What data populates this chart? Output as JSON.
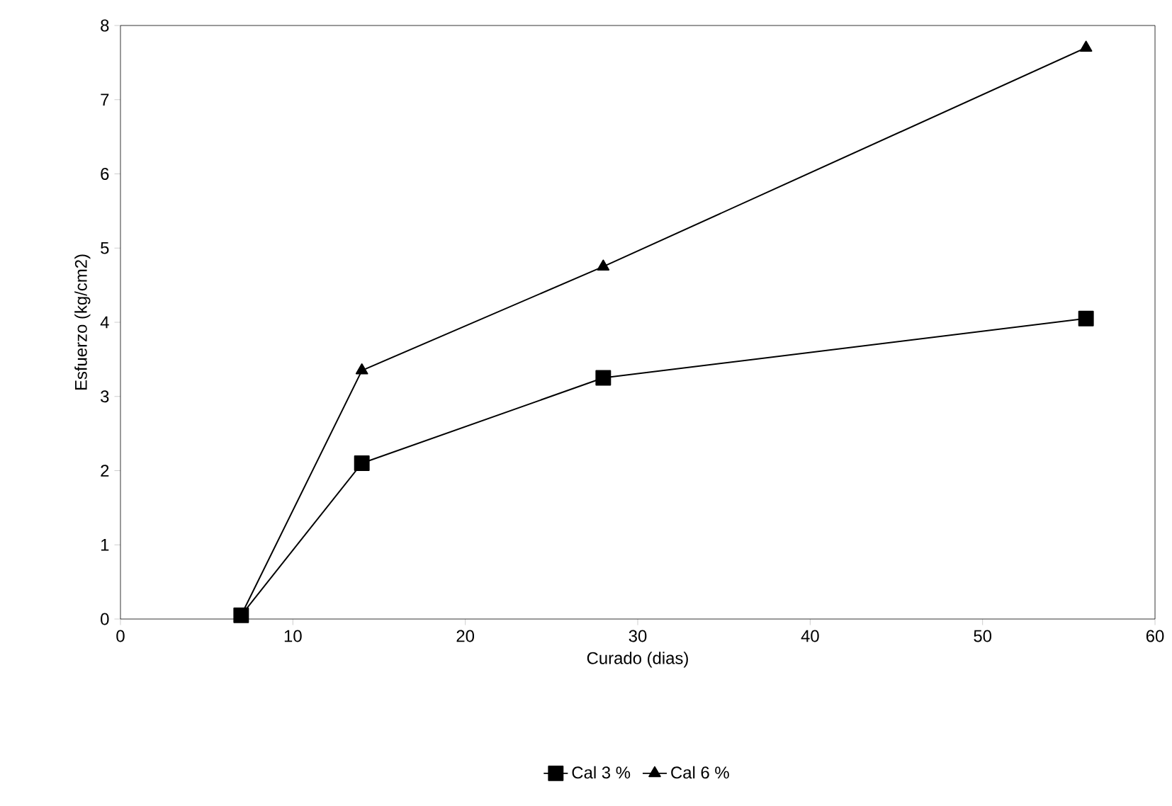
{
  "chart_data": {
    "type": "line",
    "xlabel": "Curado (dias)",
    "ylabel": "Esfuerzo (kg/cm2)",
    "xlim": [
      0,
      60
    ],
    "xticks": [
      0,
      10,
      20,
      30,
      40,
      50,
      60
    ],
    "ylim": [
      0,
      8
    ],
    "yticks": [
      0,
      1,
      2,
      3,
      4,
      5,
      6,
      7,
      8
    ],
    "x": [
      7,
      14,
      28,
      56
    ],
    "series": [
      {
        "name": "Cal 3 %",
        "color": "#000000",
        "marker": "square",
        "values": [
          0.05,
          2.1,
          3.25,
          4.05
        ]
      },
      {
        "name": "Cal 6 %",
        "color": "#000000",
        "marker": "triangle",
        "values": [
          0.05,
          3.35,
          4.75,
          7.7
        ]
      }
    ],
    "legend": "bottom",
    "grid": false,
    "line_style": "solid"
  }
}
